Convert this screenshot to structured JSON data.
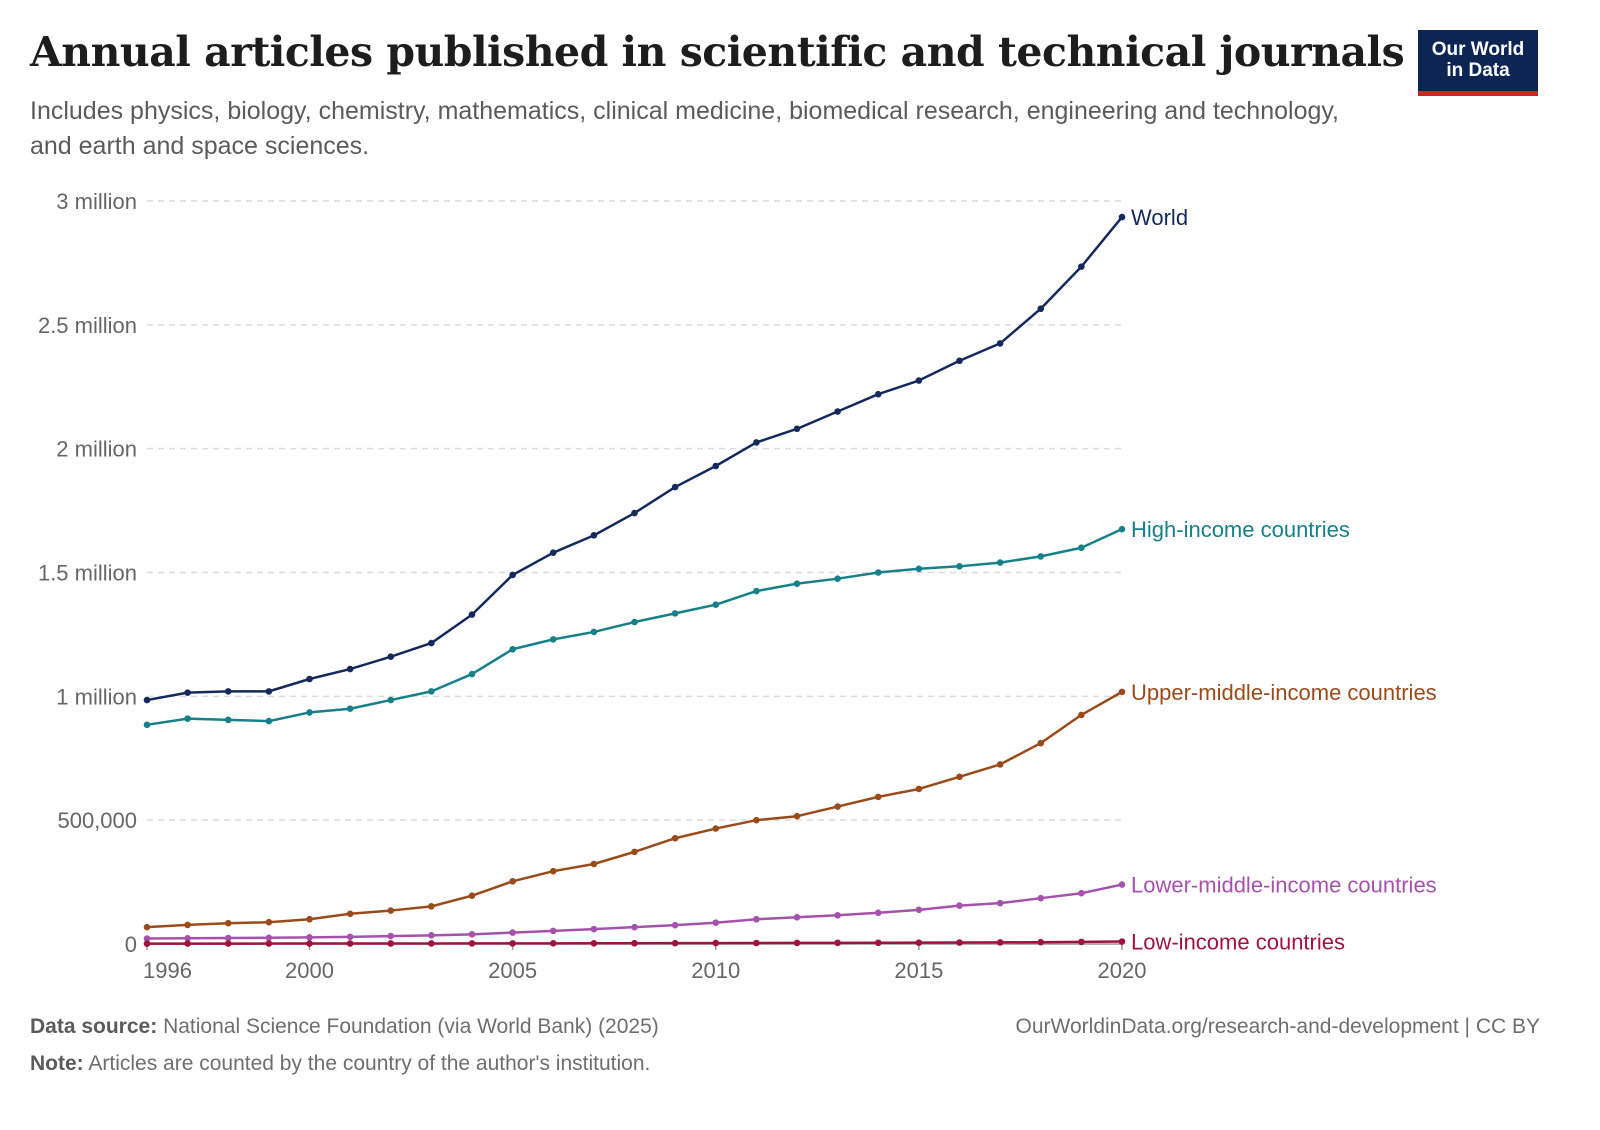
{
  "header": {
    "title": "Annual articles published in scientific and technical journals",
    "subtitle": "Includes physics, biology, chemistry, mathematics, clinical medicine, biomedical research, engineering and technology, and earth and space sciences.",
    "logo_line1": "Our World",
    "logo_line2": "in Data",
    "logo_color": "#0d2552",
    "logo_accent": "#ce261e"
  },
  "footer": {
    "source_label": "Data source:",
    "source_text": "National Science Foundation (via World Bank) (2025)",
    "note_label": "Note:",
    "note_text": "Articles are counted by the country of the author's institution.",
    "credit": "OurWorldinData.org/research-and-development | CC BY"
  },
  "chart_data": {
    "type": "line",
    "title": "Annual articles published in scientific and technical journals",
    "xlabel": "",
    "ylabel": "",
    "xlim": [
      1996,
      2020
    ],
    "ylim": [
      0,
      3000000
    ],
    "grid": true,
    "legend": "right end-of-line labels",
    "x_ticks": [
      {
        "value": 1996,
        "label": "1996"
      },
      {
        "value": 2000,
        "label": "2000"
      },
      {
        "value": 2005,
        "label": "2005"
      },
      {
        "value": 2010,
        "label": "2010"
      },
      {
        "value": 2015,
        "label": "2015"
      },
      {
        "value": 2020,
        "label": "2020"
      }
    ],
    "y_ticks": [
      {
        "value": 0,
        "label": "0"
      },
      {
        "value": 500000,
        "label": "500,000"
      },
      {
        "value": 1000000,
        "label": "1 million"
      },
      {
        "value": 1500000,
        "label": "1.5 million"
      },
      {
        "value": 2000000,
        "label": "2 million"
      },
      {
        "value": 2500000,
        "label": "2.5 million"
      },
      {
        "value": 3000000,
        "label": "3 million"
      }
    ],
    "x": [
      1996,
      1997,
      1998,
      1999,
      2000,
      2001,
      2002,
      2003,
      2004,
      2005,
      2006,
      2007,
      2008,
      2009,
      2010,
      2011,
      2012,
      2013,
      2014,
      2015,
      2016,
      2017,
      2018,
      2019,
      2020
    ],
    "series": [
      {
        "name": "World",
        "color": "#142a5c",
        "values": [
          985000,
          1015000,
          1020000,
          1020000,
          1070000,
          1110000,
          1160000,
          1215000,
          1330000,
          1490000,
          1580000,
          1650000,
          1740000,
          1845000,
          1930000,
          2025000,
          2080000,
          2150000,
          2220000,
          2275000,
          2355000,
          2425000,
          2565000,
          2735000,
          2935000
        ]
      },
      {
        "name": "High-income countries",
        "color": "#178189",
        "values": [
          885000,
          910000,
          905000,
          900000,
          935000,
          950000,
          985000,
          1020000,
          1090000,
          1190000,
          1230000,
          1260000,
          1300000,
          1335000,
          1370000,
          1425000,
          1455000,
          1475000,
          1500000,
          1515000,
          1525000,
          1540000,
          1565000,
          1600000,
          1675000
        ]
      },
      {
        "name": "Upper-middle-income countries",
        "color": "#9a4b1b",
        "values": [
          68000,
          77000,
          84000,
          88000,
          100000,
          122000,
          135000,
          152000,
          195000,
          253000,
          294000,
          323000,
          372000,
          427000,
          466000,
          500000,
          516000,
          555000,
          594000,
          626000,
          675000,
          725000,
          811000,
          925000,
          1018000
        ]
      },
      {
        "name": "Lower-middle-income countries",
        "color": "#a652ac",
        "values": [
          22000,
          23000,
          24000,
          25000,
          27000,
          29000,
          32000,
          35000,
          39000,
          46000,
          53000,
          60000,
          68000,
          76000,
          86000,
          100000,
          108000,
          116000,
          126000,
          138000,
          155000,
          165000,
          185000,
          205000,
          240000
        ]
      },
      {
        "name": "Low-income countries",
        "color": "#a1123f",
        "values": [
          1500,
          1600,
          1700,
          1800,
          1900,
          2000,
          2100,
          2200,
          2300,
          2500,
          2700,
          2900,
          3100,
          3400,
          3700,
          4000,
          4300,
          4600,
          5000,
          5400,
          6000,
          6500,
          7300,
          8500,
          10000
        ]
      }
    ]
  }
}
